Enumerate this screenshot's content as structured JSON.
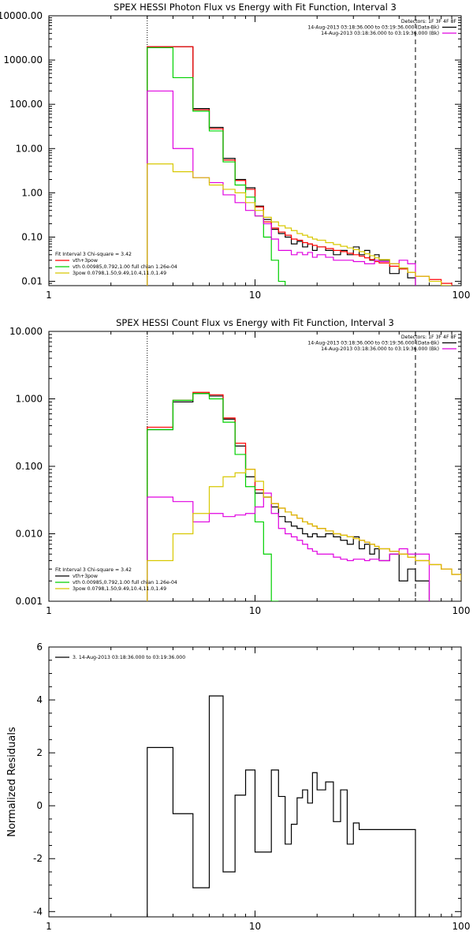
{
  "colors": {
    "black": "#000000",
    "red": "#ff0000",
    "green": "#00d000",
    "magenta": "#e000e0",
    "yellow": "#d8c800"
  },
  "chart_data": [
    {
      "type": "line",
      "title": "SPEX HESSI Photon Flux vs Energy with Fit Function, Interval 3",
      "xlabel": "",
      "ylabel": "",
      "xscale": "log",
      "yscale": "log",
      "xlim": [
        1,
        100
      ],
      "ylim": [
        0.008,
        10000
      ],
      "xticks": [
        {
          "v": 1,
          "label": "1"
        },
        {
          "v": 10,
          "label": "10"
        },
        {
          "v": 100,
          "label": "100"
        }
      ],
      "yticks": [
        {
          "v": 0.01,
          "label": "0.01"
        },
        {
          "v": 0.1,
          "label": "0.10"
        },
        {
          "v": 1,
          "label": "1.00"
        },
        {
          "v": 10,
          "label": "10.00"
        },
        {
          "v": 100,
          "label": "100.00"
        },
        {
          "v": 1000,
          "label": "1000.00"
        },
        {
          "v": 10000,
          "label": "10000.00"
        }
      ],
      "vlines": [
        {
          "x": 3,
          "style": "dotted"
        },
        {
          "x": 60,
          "style": "dashed"
        }
      ],
      "legend_top": [
        "Detectors: 1F 3F 4F 8F",
        "14-Aug-2013 03:18:36.000 to 03:19:36.000 (Data-Bk)",
        "14-Aug-2013 03:18:36.000 to 03:19:36.000 (Bk)"
      ],
      "legend_top_colors": [
        "",
        "black",
        "magenta"
      ],
      "legend_bottom": [
        "Fit Interval 3   Chi-square = 3.42",
        "vth+3pow",
        "vth 0.00985,0.792,1.00   full chian 1.26e-04",
        "3pow 0.0798,1.50,9.49,10.4,11.0,1.49"
      ],
      "legend_bottom_colors": [
        "",
        "red",
        "green",
        "yellow"
      ],
      "edges": [
        3,
        4,
        5,
        6,
        7,
        8,
        9,
        10,
        11,
        12,
        13,
        14,
        15,
        16,
        17,
        18,
        19,
        20,
        22,
        24,
        26,
        28,
        30,
        32,
        34,
        36,
        38,
        40,
        45,
        50,
        55,
        60,
        70,
        80,
        90
      ],
      "series": [
        {
          "color": "black",
          "values": [
            2000,
            2000,
            80,
            30,
            6,
            2,
            1.3,
            0.5,
            0.25,
            0.15,
            0.12,
            0.1,
            0.07,
            0.08,
            0.06,
            0.07,
            0.05,
            0.06,
            0.05,
            0.04,
            0.05,
            0.04,
            0.06,
            0.04,
            0.05,
            0.03,
            0.04,
            0.03,
            0.015,
            0.02,
            0.012
          ]
        },
        {
          "color": "red",
          "values": [
            2000,
            2000,
            75,
            28,
            5.5,
            1.9,
            1.2,
            0.48,
            0.22,
            0.16,
            0.13,
            0.11,
            0.09,
            0.085,
            0.075,
            0.07,
            0.065,
            0.06,
            0.055,
            0.05,
            0.047,
            0.043,
            0.04,
            0.037,
            0.034,
            0.031,
            0.028,
            0.026,
            0.022,
            0.019,
            0.016,
            0.013,
            0.011,
            0.009
          ]
        },
        {
          "color": "green",
          "values": [
            1900,
            400,
            70,
            25,
            5,
            1.5,
            0.8,
            0.3,
            0.1,
            0.03,
            0.01
          ]
        },
        {
          "color": "magenta",
          "values": [
            200,
            10,
            2.2,
            1.7,
            0.9,
            0.6,
            0.4,
            0.3,
            0.2,
            0.09,
            0.05,
            0.05,
            0.04,
            0.045,
            0.04,
            0.045,
            0.035,
            0.04,
            0.035,
            0.03,
            0.03,
            0.03,
            0.028,
            0.028,
            0.025,
            0.025,
            0.03,
            0.028,
            0.025,
            0.03,
            0.025
          ]
        },
        {
          "color": "yellow",
          "values": [
            4.5,
            3,
            2.2,
            1.5,
            1.2,
            1,
            0.6,
            0.4,
            0.28,
            0.22,
            0.18,
            0.16,
            0.14,
            0.12,
            0.11,
            0.1,
            0.09,
            0.085,
            0.075,
            0.068,
            0.062,
            0.057,
            0.052,
            0.047,
            0.042,
            0.038,
            0.034,
            0.031,
            0.025,
            0.02,
            0.016,
            0.013,
            0.01,
            0.008
          ]
        }
      ]
    },
    {
      "type": "line",
      "title": "SPEX HESSI Count Flux vs Energy with Fit Function, Interval 3",
      "xlabel": "",
      "ylabel": "",
      "xscale": "log",
      "yscale": "log",
      "xlim": [
        1,
        100
      ],
      "ylim": [
        0.001,
        10
      ],
      "xticks": [
        {
          "v": 1,
          "label": "1"
        },
        {
          "v": 10,
          "label": "10"
        },
        {
          "v": 100,
          "label": "100"
        }
      ],
      "yticks": [
        {
          "v": 0.001,
          "label": "0.001"
        },
        {
          "v": 0.01,
          "label": "0.010"
        },
        {
          "v": 0.1,
          "label": "0.100"
        },
        {
          "v": 1,
          "label": "1.000"
        },
        {
          "v": 10,
          "label": "10.000"
        }
      ],
      "vlines": [
        {
          "x": 3,
          "style": "dotted"
        },
        {
          "x": 60,
          "style": "dashed"
        }
      ],
      "legend_top": [
        "Detectors: 1F 3F 4F 8F",
        "14-Aug-2013 03:18:36.000 to 03:19:36.000 (Data-Bk)",
        "14-Aug-2013 03:18:36.000 to 03:19:36.000 (Bk)"
      ],
      "legend_top_colors": [
        "",
        "black",
        "magenta"
      ],
      "legend_bottom": [
        "Fit Interval 3   Chi-square = 3.42",
        "vth+3pow",
        "vth 0.00985,0.792,1.00   full chian 1.26e-04",
        "3pow 0.0798,1.50,9.49,10.4,11.0,1.49"
      ],
      "legend_bottom_colors": [
        "",
        "black",
        "green",
        "yellow"
      ],
      "edges": [
        3,
        4,
        5,
        6,
        7,
        8,
        9,
        10,
        11,
        12,
        13,
        14,
        15,
        16,
        17,
        18,
        19,
        20,
        22,
        24,
        26,
        28,
        30,
        32,
        34,
        36,
        38,
        40,
        45,
        50,
        55,
        60,
        70,
        80,
        90,
        100
      ],
      "series": [
        {
          "color": "black",
          "values": [
            0.35,
            0.9,
            1.2,
            1.1,
            0.5,
            0.2,
            0.07,
            0.04,
            0.035,
            0.025,
            0.018,
            0.015,
            0.013,
            0.012,
            0.01,
            0.009,
            0.01,
            0.009,
            0.01,
            0.009,
            0.008,
            0.007,
            0.009,
            0.006,
            0.007,
            0.005,
            0.006,
            0.004,
            0.005,
            0.002,
            0.003,
            0.002
          ]
        },
        {
          "color": "red",
          "values": [
            0.38,
            0.95,
            1.25,
            1.15,
            0.52,
            0.22,
            0.09,
            0.045,
            0.035,
            0.028,
            0.024,
            0.021,
            0.019,
            0.017,
            0.015,
            0.014,
            0.013,
            0.012,
            0.011,
            0.01,
            0.0095,
            0.009,
            0.0085,
            0.008,
            0.0075,
            0.007,
            0.0065,
            0.006,
            0.0055,
            0.005,
            0.0045,
            0.004,
            0.0035,
            0.003,
            0.0025,
            0.002
          ]
        },
        {
          "color": "green",
          "values": [
            0.35,
            0.95,
            1.2,
            1.0,
            0.45,
            0.15,
            0.05,
            0.015,
            0.005,
            0.001
          ]
        },
        {
          "color": "magenta",
          "values": [
            0.035,
            0.03,
            0.015,
            0.02,
            0.018,
            0.019,
            0.02,
            0.025,
            0.04,
            0.02,
            0.012,
            0.01,
            0.009,
            0.008,
            0.007,
            0.006,
            0.0055,
            0.005,
            0.005,
            0.0045,
            0.0042,
            0.004,
            0.0042,
            0.0042,
            0.004,
            0.0042,
            0.0042,
            0.004,
            0.005,
            0.006,
            0.005,
            0.005
          ]
        },
        {
          "color": "yellow",
          "values": [
            0.004,
            0.01,
            0.02,
            0.05,
            0.07,
            0.08,
            0.09,
            0.06,
            0.035,
            0.028,
            0.024,
            0.021,
            0.019,
            0.017,
            0.015,
            0.014,
            0.013,
            0.012,
            0.011,
            0.01,
            0.0095,
            0.009,
            0.0085,
            0.008,
            0.0075,
            0.007,
            0.0065,
            0.006,
            0.0055,
            0.005,
            0.0045,
            0.004,
            0.0035,
            0.003,
            0.0025,
            0.002
          ]
        }
      ]
    },
    {
      "type": "line",
      "title": "",
      "xlabel": "",
      "ylabel": "Normalized Residuals",
      "xscale": "log",
      "yscale": "linear",
      "xlim": [
        1,
        100
      ],
      "ylim": [
        -4.2,
        6
      ],
      "xticks": [
        {
          "v": 1,
          "label": "1"
        },
        {
          "v": 10,
          "label": "10"
        },
        {
          "v": 100,
          "label": "100"
        }
      ],
      "yticks": [
        {
          "v": -4,
          "label": "-4"
        },
        {
          "v": -2,
          "label": "-2"
        },
        {
          "v": 0,
          "label": "0"
        },
        {
          "v": 2,
          "label": "2"
        },
        {
          "v": 4,
          "label": "4"
        },
        {
          "v": 6,
          "label": "6"
        }
      ],
      "vlines": [],
      "legend_top_left": "3. 14-Aug-2013 03:18:36.000 to 03:19:36.000",
      "edges": [
        3,
        4,
        5,
        6,
        7,
        8,
        9,
        10,
        12,
        13,
        14,
        15,
        16,
        17,
        18,
        19,
        20,
        22,
        24,
        26,
        28,
        30,
        32,
        34,
        36,
        38,
        40,
        45,
        50,
        55,
        60
      ],
      "series": [
        {
          "color": "black",
          "values": [
            2.2,
            -0.3,
            -3.1,
            4.15,
            -2.5,
            0.4,
            1.35,
            -1.75,
            1.35,
            0.35,
            -1.45,
            -0.7,
            0.3,
            0.6,
            0.1,
            1.25,
            0.6,
            0.9,
            -0.6,
            0.6,
            -1.45,
            -0.65,
            -0.9,
            -0.9,
            -0.9,
            -0.9,
            -0.9,
            -0.9,
            -0.9,
            -0.9
          ]
        }
      ]
    }
  ]
}
